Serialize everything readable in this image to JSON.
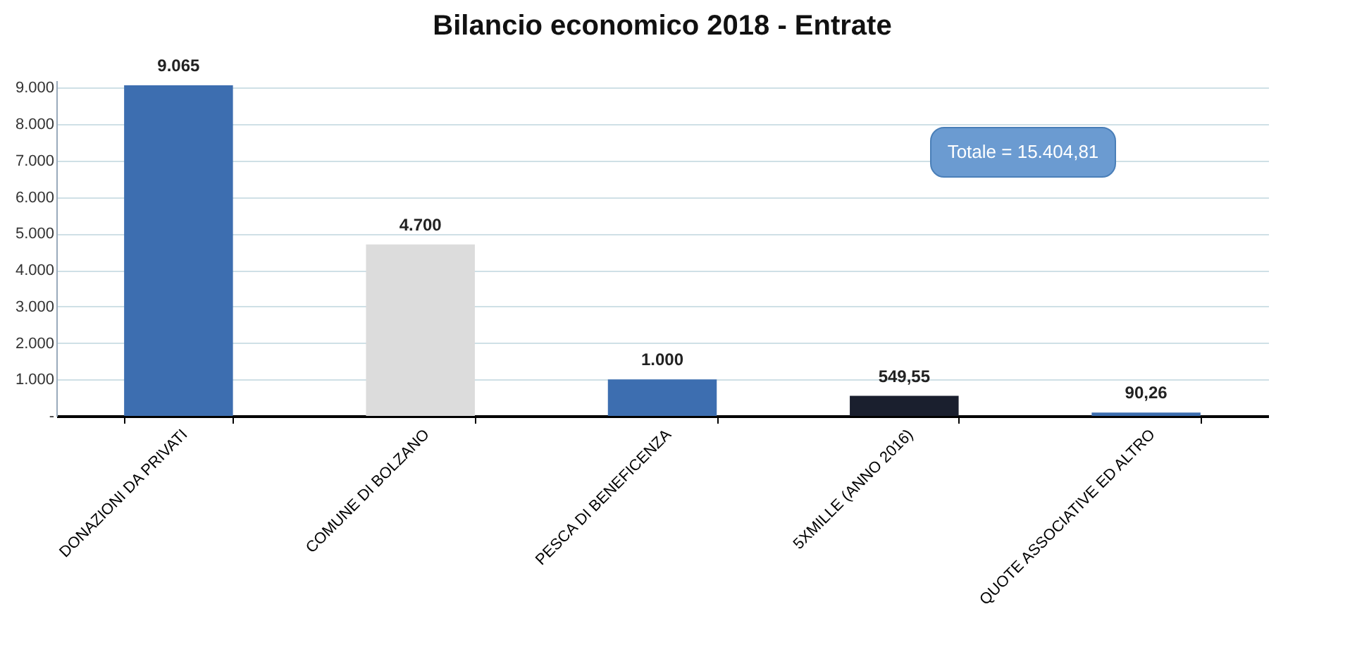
{
  "chart_data": {
    "type": "bar",
    "title": "Bilancio economico 2018 - Entrate",
    "categories": [
      "DONAZIONI DA PRIVATI",
      "COMUNE DI BOLZANO",
      "PESCA DI BENEFICENZA",
      "5XMILLE (ANNO 2016)",
      "QUOTE ASSOCIATIVE ED ALTRO"
    ],
    "values": [
      9065,
      4700,
      1000,
      549.55,
      90.26
    ],
    "colors": [
      "#3d6eb0",
      "#dcdcdc",
      "#3d6eb0",
      "#1a1f2e",
      "#3d6eb0"
    ],
    "value_labels": [
      "9.065",
      "4.700",
      "1.000",
      "549,55",
      "90,26"
    ],
    "ylim": [
      0,
      9200
    ],
    "yticks": [
      {
        "value": 0,
        "label": "-"
      },
      {
        "value": 1000,
        "label": "1.000"
      },
      {
        "value": 2000,
        "label": "2.000"
      },
      {
        "value": 3000,
        "label": "3.000"
      },
      {
        "value": 4000,
        "label": "4.000"
      },
      {
        "value": 5000,
        "label": "5.000"
      },
      {
        "value": 6000,
        "label": "6.000"
      },
      {
        "value": 7000,
        "label": "7.000"
      },
      {
        "value": 8000,
        "label": "8.000"
      },
      {
        "value": 9000,
        "label": "9.000"
      }
    ],
    "grid": "y",
    "annotations": [
      "Totale = 15.404,81"
    ]
  }
}
